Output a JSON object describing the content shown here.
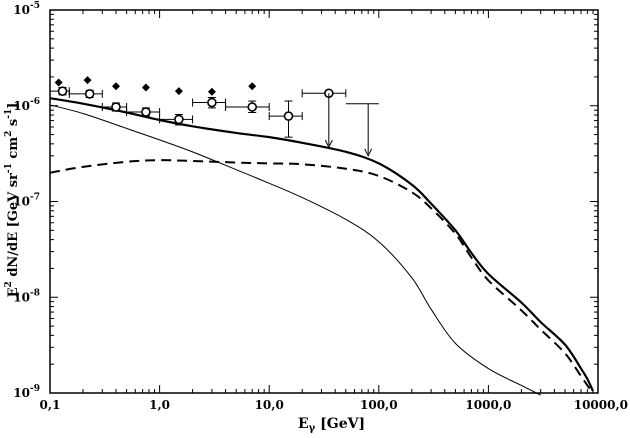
{
  "chart_data": {
    "type": "line",
    "x_scale": "log",
    "y_scale": "log",
    "xlim": [
      0.1,
      10000
    ],
    "ylim": [
      1e-09,
      1e-05
    ],
    "grid": false,
    "xlabel": {
      "main": "E",
      "sub": "γ",
      "rest": " [GeV]"
    },
    "ylabel": {
      "text1": "E",
      "sup1": "2",
      "text2": " dN/dE [GeV sr",
      "sup2": "-1",
      "text3": " cm",
      "sup3": "2",
      "text4": " s",
      "sup4": "-1",
      "text5": "]"
    },
    "x_ticks": [
      {
        "value": 0.1,
        "label": "0,1"
      },
      {
        "value": 1,
        "label": "1,0"
      },
      {
        "value": 10,
        "label": "10,0"
      },
      {
        "value": 100,
        "label": "100,0"
      },
      {
        "value": 1000,
        "label": "1000,0"
      },
      {
        "value": 10000,
        "label": "10000,0"
      }
    ],
    "y_ticks": [
      {
        "value": 1e-09,
        "mant": "10",
        "exp": "-9"
      },
      {
        "value": 1e-08,
        "mant": "10",
        "exp": "-8"
      },
      {
        "value": 1e-07,
        "mant": "10",
        "exp": "-7"
      },
      {
        "value": 1e-06,
        "mant": "10",
        "exp": "-6"
      },
      {
        "value": 1e-05,
        "mant": "10",
        "exp": "-5"
      }
    ],
    "series": [
      {
        "style": "thick-solid",
        "points": [
          [
            0.1,
            1.2e-06
          ],
          [
            0.2,
            1.05e-06
          ],
          [
            0.5,
            8.5e-07
          ],
          [
            1,
            7.1e-07
          ],
          [
            2,
            6.1e-07
          ],
          [
            5,
            5.2e-07
          ],
          [
            10,
            4.7e-07
          ],
          [
            20,
            4.1e-07
          ],
          [
            50,
            3.3e-07
          ],
          [
            100,
            2.5e-07
          ],
          [
            200,
            1.5e-07
          ],
          [
            300,
            9.5e-08
          ],
          [
            500,
            5e-08
          ],
          [
            700,
            2.9e-08
          ],
          [
            1000,
            1.75e-08
          ],
          [
            2000,
            8.8e-09
          ],
          [
            3000,
            5.5e-09
          ],
          [
            5000,
            3.2e-09
          ],
          [
            7000,
            1.8e-09
          ],
          [
            8000,
            1.4e-09
          ],
          [
            9000,
            1.05e-09
          ]
        ]
      },
      {
        "style": "dashed",
        "points": [
          [
            0.1,
            2e-07
          ],
          [
            0.2,
            2.3e-07
          ],
          [
            0.5,
            2.6e-07
          ],
          [
            1,
            2.7e-07
          ],
          [
            2,
            2.65e-07
          ],
          [
            5,
            2.55e-07
          ],
          [
            10,
            2.5e-07
          ],
          [
            20,
            2.45e-07
          ],
          [
            50,
            2.2e-07
          ],
          [
            100,
            1.85e-07
          ],
          [
            200,
            1.25e-07
          ],
          [
            300,
            8.5e-08
          ],
          [
            500,
            4.6e-08
          ],
          [
            700,
            2.6e-08
          ],
          [
            1000,
            1.5e-08
          ],
          [
            2000,
            7.3e-09
          ],
          [
            3000,
            4.6e-09
          ],
          [
            5000,
            2.6e-09
          ],
          [
            7000,
            1.5e-09
          ],
          [
            8000,
            1.2e-09
          ],
          [
            9000,
            1e-09
          ]
        ]
      },
      {
        "style": "thin-solid",
        "points": [
          [
            0.1,
            1.02e-06
          ],
          [
            0.2,
            8.3e-07
          ],
          [
            0.5,
            5.8e-07
          ],
          [
            1,
            4.4e-07
          ],
          [
            2,
            3.3e-07
          ],
          [
            5,
            2.15e-07
          ],
          [
            10,
            1.55e-07
          ],
          [
            20,
            1.1e-07
          ],
          [
            50,
            6.5e-08
          ],
          [
            100,
            3.8e-08
          ],
          [
            200,
            1.6e-08
          ],
          [
            300,
            7.5e-09
          ],
          [
            500,
            3.3e-09
          ],
          [
            1000,
            1.8e-09
          ],
          [
            2000,
            1.2e-09
          ],
          [
            3000,
            9.5e-10
          ]
        ]
      }
    ],
    "diamonds": [
      [
        0.12,
        1.75e-06
      ],
      [
        0.22,
        1.85e-06
      ],
      [
        0.4,
        1.6e-06
      ],
      [
        0.75,
        1.55e-06
      ],
      [
        1.5,
        1.42e-06
      ],
      [
        3,
        1.4e-06
      ],
      [
        7,
        1.6e-06
      ]
    ],
    "measurements": [
      {
        "x": 0.13,
        "y": 1.42e-06,
        "x_lo": 0.1,
        "x_hi": 0.15,
        "y_lo": 1.3e-06,
        "y_hi": 1.55e-06
      },
      {
        "x": 0.23,
        "y": 1.33e-06,
        "x_lo": 0.15,
        "x_hi": 0.3,
        "y_lo": 1.22e-06,
        "y_hi": 1.45e-06
      },
      {
        "x": 0.4,
        "y": 9.7e-07,
        "x_lo": 0.3,
        "x_hi": 0.5,
        "y_lo": 8.8e-07,
        "y_hi": 1.07e-06
      },
      {
        "x": 0.75,
        "y": 8.6e-07,
        "x_lo": 0.5,
        "x_hi": 1,
        "y_lo": 7.8e-07,
        "y_hi": 9.5e-07
      },
      {
        "x": 1.5,
        "y": 7.2e-07,
        "x_lo": 1,
        "x_hi": 2,
        "y_lo": 6.3e-07,
        "y_hi": 8.1e-07
      },
      {
        "x": 3,
        "y": 1.08e-06,
        "x_lo": 2,
        "x_hi": 4,
        "y_lo": 9.5e-07,
        "y_hi": 1.22e-06
      },
      {
        "x": 7,
        "y": 9.7e-07,
        "x_lo": 4,
        "x_hi": 10,
        "y_lo": 8.5e-07,
        "y_hi": 1.12e-06
      },
      {
        "x": 15,
        "y": 7.8e-07,
        "x_lo": 10,
        "x_hi": 20,
        "y_lo": 4.7e-07,
        "y_hi": 1.12e-06
      },
      {
        "x": 35,
        "y": 1.35e-06,
        "x_lo": 20,
        "x_hi": 50,
        "y_lo": 1.35e-06,
        "y_hi": 1.35e-06
      }
    ],
    "upper_limits": [
      {
        "x": 35,
        "y": 1.35e-06,
        "y_arrow": 3.7e-07
      },
      {
        "x": 80,
        "y": 1.05e-06,
        "x_lo": 50,
        "x_hi": 100,
        "y_arrow": 3e-07
      }
    ]
  }
}
